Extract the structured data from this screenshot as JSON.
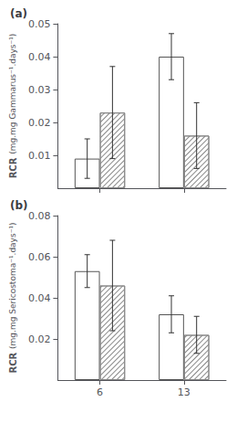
{
  "chart_data": [
    {
      "type": "bar",
      "title": "(a)",
      "ylabel": [
        "RCR",
        "(mg.mg Gammarus⁻¹.days⁻¹)"
      ],
      "categories": [
        "6",
        "13"
      ],
      "series": [
        {
          "color": "#ffffff",
          "values": [
            0.009,
            0.04
          ],
          "errors": [
            0.006,
            0.007
          ]
        },
        {
          "color": "#ffffff",
          "values": [
            0.023,
            0.016
          ],
          "errors": [
            0.014,
            0.01
          ]
        }
      ],
      "ylim": [
        0,
        0.05
      ],
      "yticks": [
        0.01,
        0.02,
        0.03,
        0.04,
        0.05
      ],
      "grid": false,
      "tick_labels": "y"
    },
    {
      "type": "bar",
      "title": "(b)",
      "ylabel": [
        "RCR",
        "(mg.mg Sericostoma⁻¹.days⁻¹)"
      ],
      "categories": [
        "6",
        "13"
      ],
      "series": [
        {
          "color": "#ffffff",
          "values": [
            0.053,
            0.032
          ],
          "errors": [
            0.008,
            0.009
          ]
        },
        {
          "color": "#ffffff",
          "values": [
            0.046,
            0.022
          ],
          "errors": [
            0.022,
            0.009
          ]
        }
      ],
      "ylim": [
        0,
        0.08
      ],
      "yticks": [
        0.02,
        0.04,
        0.06,
        0.08
      ],
      "grid": false
    }
  ]
}
